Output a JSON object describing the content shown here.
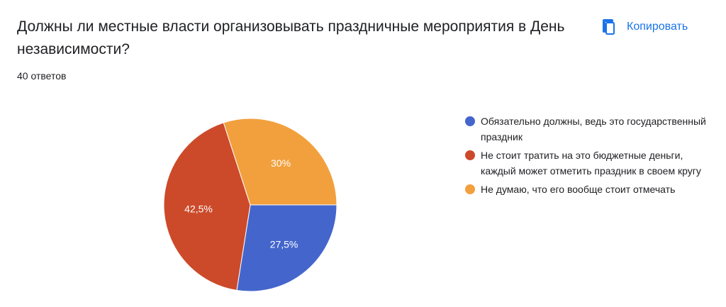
{
  "question": {
    "title": "Должны ли местные власти организовывать праздничные мероприятия в День независимости?",
    "response_count": "40 ответов"
  },
  "toolbar": {
    "copy_label": "Копировать",
    "copy_icon": "copy-icon",
    "accent_color": "#1a73e8"
  },
  "chart_data": {
    "type": "pie",
    "categories": [
      "Обязательно должны, ведь это государственный праздник",
      "Не стоит тратить на это бюджетные деньги, каждый может отметить праздник в своем кругу",
      "Не думаю, что его вообще стоит отмечать"
    ],
    "values": [
      27.5,
      42.5,
      30
    ],
    "labels": [
      "27,5%",
      "42,5%",
      "30%"
    ],
    "colors": [
      "#4466cc",
      "#cc4a2a",
      "#f2a03d"
    ],
    "legend_position": "right",
    "start": "3 o'clock, clockwise"
  }
}
